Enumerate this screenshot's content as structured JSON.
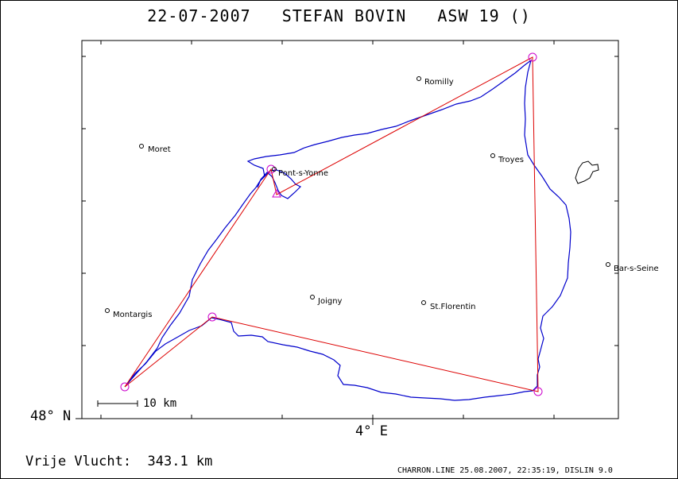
{
  "title": "22-07-2007   STEFAN BOVIN   ASW 19 ()",
  "axes": {
    "lat_label": "48° N",
    "lon_label": "4° E"
  },
  "scale": {
    "label": "10 km"
  },
  "distance": {
    "text": "Vrije Vlucht:  343.1 km"
  },
  "footer": {
    "text": "CHARRON.LINE 25.08.2007, 22:35:19, DISLIN 9.0"
  },
  "towns": [
    {
      "name": "Romilly"
    },
    {
      "name": "Moret"
    },
    {
      "name": "Troyes"
    },
    {
      "name": "Pont-s-Yonne"
    },
    {
      "name": "Bar-s-Seine"
    },
    {
      "name": "Joigny"
    },
    {
      "name": "Montargis"
    },
    {
      "name": "St.Florentin"
    }
  ],
  "colors": {
    "track": "#0000cc",
    "task": "#dd0000",
    "turnpoint": "#cc00cc",
    "frame": "#000000"
  }
}
